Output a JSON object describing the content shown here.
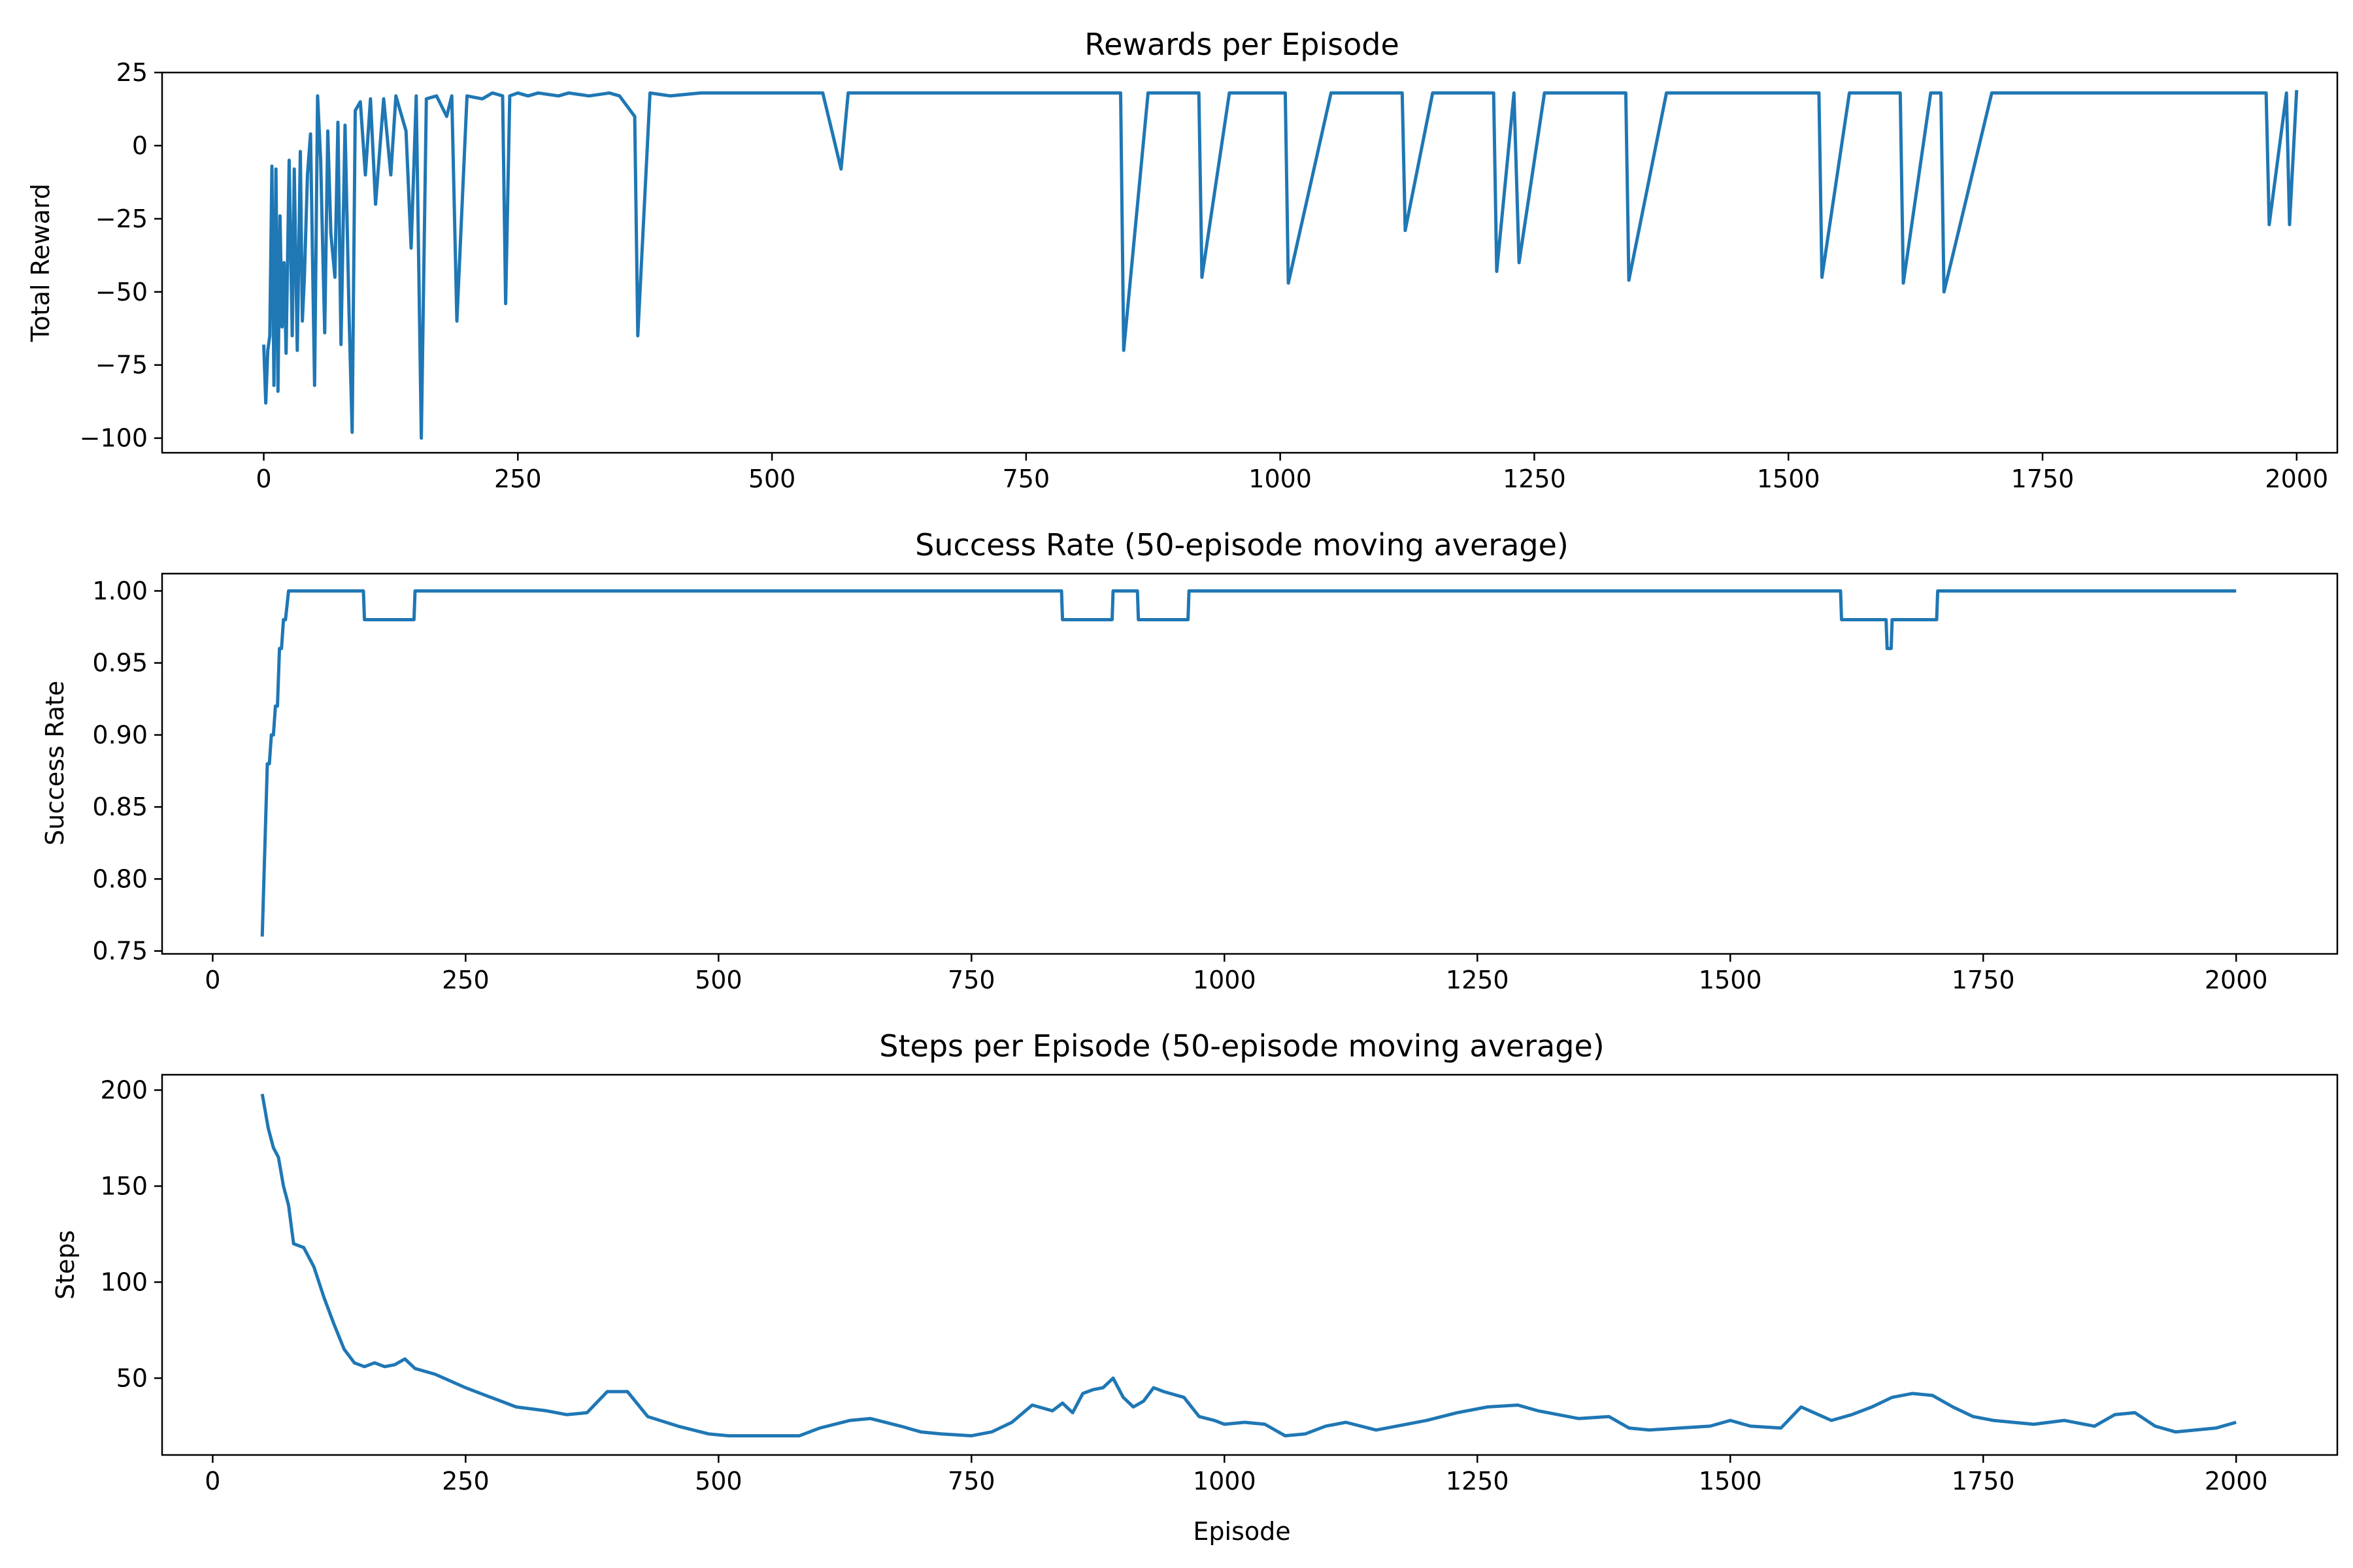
{
  "figure": {
    "line_color": "#1f77b4",
    "background": "#ffffff"
  },
  "chart_data": [
    {
      "type": "line",
      "title": "Rewards per Episode",
      "xlabel": "",
      "ylabel": "Total Reward",
      "xlim": [
        -100,
        2040
      ],
      "ylim": [
        -105,
        25
      ],
      "xticks": [
        0,
        250,
        500,
        750,
        1000,
        1250,
        1500,
        1750,
        2000
      ],
      "yticks": [
        -100,
        -75,
        -50,
        -25,
        0,
        25
      ],
      "xtick_labels": [
        "0",
        "250",
        "500",
        "750",
        "1000",
        "1250",
        "1500",
        "1750",
        "2000"
      ],
      "ytick_labels": [
        "−100",
        "−75",
        "−50",
        "−25",
        "0",
        "25"
      ],
      "grid": false,
      "series": [
        {
          "x": [
            0,
            2,
            4,
            6,
            8,
            10,
            12,
            14,
            16,
            18,
            20,
            22,
            25,
            28,
            30,
            33,
            36,
            38,
            40,
            43,
            46,
            50,
            53,
            56,
            60,
            63,
            66,
            70,
            73,
            76,
            80,
            84,
            87,
            90,
            95,
            100,
            105,
            110,
            118,
            125,
            130,
            140,
            145,
            150,
            155,
            160,
            170,
            180,
            185,
            190,
            200,
            215,
            225,
            235,
            238,
            242,
            250,
            260,
            270,
            290,
            300,
            320,
            340,
            350,
            365,
            368,
            380,
            400,
            430,
            450,
            500,
            550,
            568,
            575,
            600,
            640,
            660,
            700,
            760,
            780,
            800,
            820,
            843,
            846,
            870,
            900,
            920,
            923,
            950,
            1000,
            1005,
            1008,
            1050,
            1100,
            1120,
            1123,
            1150,
            1200,
            1210,
            1213,
            1230,
            1235,
            1260,
            1300,
            1330,
            1340,
            1343,
            1380,
            1450,
            1480,
            1500,
            1530,
            1533,
            1560,
            1600,
            1610,
            1613,
            1640,
            1650,
            1653,
            1700,
            1750,
            1800,
            1840,
            1850,
            1900,
            1950,
            1970,
            1973,
            1990,
            1993,
            2000
          ],
          "values": [
            -68,
            -88,
            -70,
            -65,
            -7,
            -82,
            -8,
            -84,
            -24,
            -62,
            -40,
            -71,
            -5,
            -65,
            -8,
            -70,
            -2,
            -60,
            -45,
            -10,
            4,
            -82,
            17,
            -5,
            -64,
            5,
            -30,
            -45,
            8,
            -68,
            7,
            -58,
            -98,
            12,
            15,
            -10,
            16,
            -20,
            16,
            -10,
            17,
            5,
            -35,
            17,
            -100,
            16,
            17,
            10,
            17,
            -60,
            17,
            16,
            18,
            17,
            -54,
            17,
            18,
            17,
            18,
            17,
            18,
            17,
            18,
            17,
            10,
            -65,
            18,
            17,
            18,
            18,
            18,
            18,
            -8,
            18,
            18,
            18,
            18,
            18,
            18,
            18,
            18,
            18,
            18,
            -70,
            18,
            18,
            18,
            -45,
            18,
            18,
            18,
            -47,
            18,
            18,
            18,
            -29,
            18,
            18,
            18,
            -43,
            18,
            -40,
            18,
            18,
            18,
            18,
            -46,
            18,
            18,
            18,
            18,
            18,
            -45,
            18,
            18,
            18,
            -47,
            18,
            18,
            -50,
            18,
            18,
            18,
            18,
            18,
            18,
            18,
            18,
            -27,
            18,
            -27,
            19
          ]
        }
      ]
    },
    {
      "type": "line",
      "title": "Success Rate (50-episode moving average)",
      "xlabel": "",
      "ylabel": "Success Rate",
      "xlim": [
        -50,
        2100
      ],
      "ylim": [
        0.748,
        1.012
      ],
      "xticks": [
        0,
        250,
        500,
        750,
        1000,
        1250,
        1500,
        1750,
        2000
      ],
      "yticks": [
        0.75,
        0.8,
        0.85,
        0.9,
        0.95,
        1.0
      ],
      "xtick_labels": [
        "0",
        "250",
        "500",
        "750",
        "1000",
        "1250",
        "1500",
        "1750",
        "2000"
      ],
      "ytick_labels": [
        "0.75",
        "0.80",
        "0.85",
        "0.90",
        "0.95",
        "1.00"
      ],
      "grid": false,
      "series": [
        {
          "x": [
            49,
            54,
            56,
            58,
            60,
            62,
            64,
            66,
            68,
            70,
            72,
            75,
            149,
            150,
            199,
            200,
            839,
            840,
            889,
            890,
            914,
            915,
            964,
            965,
            1609,
            1610,
            1654,
            1655,
            1659,
            1660,
            1704,
            1705,
            2000
          ],
          "values": [
            0.76,
            0.88,
            0.88,
            0.9,
            0.9,
            0.92,
            0.92,
            0.96,
            0.96,
            0.98,
            0.98,
            1.0,
            1.0,
            0.98,
            0.98,
            1.0,
            1.0,
            0.98,
            0.98,
            1.0,
            1.0,
            0.98,
            0.98,
            1.0,
            1.0,
            0.98,
            0.98,
            0.96,
            0.96,
            0.98,
            0.98,
            1.0,
            1.0
          ]
        }
      ]
    },
    {
      "type": "line",
      "title": "Steps per Episode (50-episode moving average)",
      "xlabel": "Episode",
      "ylabel": "Steps",
      "xlim": [
        -50,
        2100
      ],
      "ylim": [
        10,
        208
      ],
      "xticks": [
        0,
        250,
        500,
        750,
        1000,
        1250,
        1500,
        1750,
        2000
      ],
      "yticks": [
        50,
        100,
        150,
        200
      ],
      "xtick_labels": [
        "0",
        "250",
        "500",
        "750",
        "1000",
        "1250",
        "1500",
        "1750",
        "2000"
      ],
      "ytick_labels": [
        "50",
        "100",
        "150",
        "200"
      ],
      "grid": false,
      "series": [
        {
          "x": [
            49,
            55,
            60,
            65,
            70,
            75,
            80,
            90,
            100,
            110,
            120,
            130,
            140,
            150,
            160,
            170,
            180,
            190,
            200,
            220,
            250,
            270,
            300,
            330,
            350,
            370,
            390,
            410,
            430,
            460,
            490,
            510,
            550,
            580,
            600,
            630,
            650,
            680,
            700,
            720,
            750,
            770,
            790,
            810,
            830,
            840,
            850,
            860,
            870,
            880,
            890,
            900,
            910,
            920,
            930,
            940,
            960,
            975,
            990,
            1000,
            1020,
            1040,
            1060,
            1080,
            1100,
            1120,
            1150,
            1170,
            1200,
            1230,
            1260,
            1290,
            1310,
            1330,
            1350,
            1380,
            1400,
            1420,
            1450,
            1480,
            1500,
            1520,
            1550,
            1570,
            1600,
            1620,
            1640,
            1660,
            1680,
            1700,
            1720,
            1740,
            1760,
            1800,
            1830,
            1860,
            1880,
            1900,
            1920,
            1940,
            1960,
            1980,
            2000
          ],
          "values": [
            198,
            180,
            170,
            165,
            150,
            140,
            120,
            118,
            108,
            92,
            78,
            65,
            58,
            56,
            58,
            56,
            57,
            60,
            55,
            52,
            45,
            41,
            35,
            33,
            31,
            32,
            43,
            43,
            30,
            25,
            21,
            20,
            20,
            20,
            24,
            28,
            29,
            25,
            22,
            21,
            20,
            22,
            27,
            36,
            33,
            37,
            32,
            42,
            44,
            45,
            50,
            40,
            35,
            38,
            45,
            43,
            40,
            30,
            28,
            26,
            27,
            26,
            20,
            21,
            25,
            27,
            23,
            25,
            28,
            32,
            35,
            36,
            33,
            31,
            29,
            30,
            24,
            23,
            24,
            25,
            28,
            25,
            24,
            35,
            28,
            31,
            35,
            40,
            42,
            41,
            35,
            30,
            28,
            26,
            28,
            25,
            31,
            32,
            25,
            22,
            23,
            24,
            27
          ]
        }
      ]
    }
  ]
}
